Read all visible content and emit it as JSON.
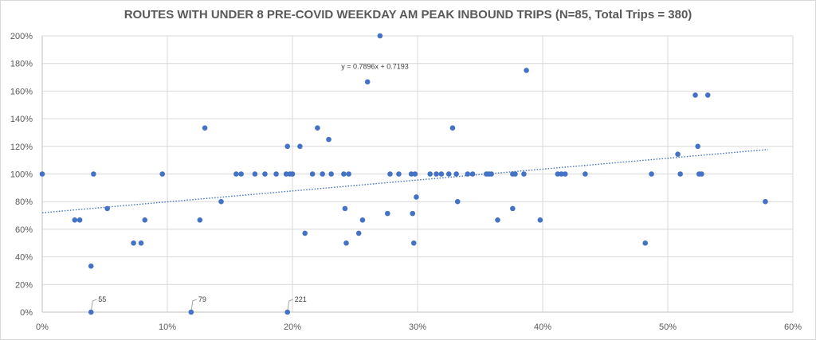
{
  "chart_data": {
    "type": "scatter",
    "title": "ROUTES WITH UNDER 8 PRE-COVID WEEKDAY AM PEAK INBOUND TRIPS (N=85, Total Trips = 380)",
    "xlabel": "",
    "ylabel": "",
    "xlim": [
      0,
      0.6
    ],
    "ylim": [
      0,
      2.0
    ],
    "x_ticks": [
      "0%",
      "10%",
      "20%",
      "30%",
      "40%",
      "50%",
      "60%"
    ],
    "y_ticks": [
      "0%",
      "20%",
      "40%",
      "60%",
      "80%",
      "100%",
      "120%",
      "140%",
      "160%",
      "180%",
      "200%"
    ],
    "grid": true,
    "legend": "none",
    "point_color": "#4472c4",
    "trendline": {
      "equation": "y = 0.7896x + 0.7193",
      "slope": 0.7896,
      "intercept": 0.7193,
      "style": "dotted",
      "color": "#4472c4"
    },
    "annotations": [
      {
        "label": "55",
        "x": 0.039,
        "y": 0.0
      },
      {
        "label": "79",
        "x": 0.119,
        "y": 0.0
      },
      {
        "label": "221",
        "x": 0.196,
        "y": 0.0
      }
    ],
    "points": [
      {
        "x": 0.0,
        "y": 1.0
      },
      {
        "x": 0.026,
        "y": 0.667
      },
      {
        "x": 0.03,
        "y": 0.667
      },
      {
        "x": 0.039,
        "y": 0.333
      },
      {
        "x": 0.039,
        "y": 0.0
      },
      {
        "x": 0.041,
        "y": 1.0
      },
      {
        "x": 0.052,
        "y": 0.75
      },
      {
        "x": 0.073,
        "y": 0.5
      },
      {
        "x": 0.079,
        "y": 0.5
      },
      {
        "x": 0.082,
        "y": 0.667
      },
      {
        "x": 0.096,
        "y": 1.0
      },
      {
        "x": 0.119,
        "y": 0.0
      },
      {
        "x": 0.126,
        "y": 0.667
      },
      {
        "x": 0.13,
        "y": 1.333
      },
      {
        "x": 0.143,
        "y": 0.8
      },
      {
        "x": 0.155,
        "y": 1.0
      },
      {
        "x": 0.159,
        "y": 1.0
      },
      {
        "x": 0.17,
        "y": 1.0
      },
      {
        "x": 0.178,
        "y": 1.0
      },
      {
        "x": 0.187,
        "y": 1.0
      },
      {
        "x": 0.195,
        "y": 1.0
      },
      {
        "x": 0.196,
        "y": 1.2
      },
      {
        "x": 0.198,
        "y": 1.0
      },
      {
        "x": 0.2,
        "y": 1.0
      },
      {
        "x": 0.196,
        "y": 0.0
      },
      {
        "x": 0.206,
        "y": 1.2
      },
      {
        "x": 0.21,
        "y": 0.571
      },
      {
        "x": 0.216,
        "y": 1.0
      },
      {
        "x": 0.22,
        "y": 1.333
      },
      {
        "x": 0.224,
        "y": 1.0
      },
      {
        "x": 0.229,
        "y": 1.25
      },
      {
        "x": 0.231,
        "y": 1.0
      },
      {
        "x": 0.241,
        "y": 1.0
      },
      {
        "x": 0.242,
        "y": 0.75
      },
      {
        "x": 0.243,
        "y": 0.5
      },
      {
        "x": 0.245,
        "y": 1.0
      },
      {
        "x": 0.253,
        "y": 0.571
      },
      {
        "x": 0.256,
        "y": 0.667
      },
      {
        "x": 0.26,
        "y": 1.667
      },
      {
        "x": 0.27,
        "y": 2.0
      },
      {
        "x": 0.276,
        "y": 0.714
      },
      {
        "x": 0.278,
        "y": 1.0
      },
      {
        "x": 0.285,
        "y": 1.0
      },
      {
        "x": 0.295,
        "y": 1.0
      },
      {
        "x": 0.296,
        "y": 0.714
      },
      {
        "x": 0.297,
        "y": 0.5
      },
      {
        "x": 0.298,
        "y": 1.0
      },
      {
        "x": 0.299,
        "y": 0.833
      },
      {
        "x": 0.31,
        "y": 1.0
      },
      {
        "x": 0.315,
        "y": 1.0
      },
      {
        "x": 0.319,
        "y": 1.0
      },
      {
        "x": 0.325,
        "y": 1.0
      },
      {
        "x": 0.328,
        "y": 1.333
      },
      {
        "x": 0.331,
        "y": 1.0
      },
      {
        "x": 0.332,
        "y": 0.8
      },
      {
        "x": 0.34,
        "y": 1.0
      },
      {
        "x": 0.344,
        "y": 1.0
      },
      {
        "x": 0.355,
        "y": 1.0
      },
      {
        "x": 0.357,
        "y": 1.0
      },
      {
        "x": 0.359,
        "y": 1.0
      },
      {
        "x": 0.364,
        "y": 0.667
      },
      {
        "x": 0.376,
        "y": 1.0
      },
      {
        "x": 0.376,
        "y": 0.75
      },
      {
        "x": 0.378,
        "y": 1.0
      },
      {
        "x": 0.385,
        "y": 1.0
      },
      {
        "x": 0.387,
        "y": 1.75
      },
      {
        "x": 0.398,
        "y": 0.667
      },
      {
        "x": 0.412,
        "y": 1.0
      },
      {
        "x": 0.415,
        "y": 1.0
      },
      {
        "x": 0.418,
        "y": 1.0
      },
      {
        "x": 0.434,
        "y": 1.0
      },
      {
        "x": 0.482,
        "y": 0.5
      },
      {
        "x": 0.487,
        "y": 1.0
      },
      {
        "x": 0.508,
        "y": 1.143
      },
      {
        "x": 0.51,
        "y": 1.0
      },
      {
        "x": 0.522,
        "y": 1.571
      },
      {
        "x": 0.524,
        "y": 1.2
      },
      {
        "x": 0.525,
        "y": 1.0
      },
      {
        "x": 0.527,
        "y": 1.0
      },
      {
        "x": 0.532,
        "y": 1.571
      },
      {
        "x": 0.578,
        "y": 0.8
      }
    ]
  }
}
